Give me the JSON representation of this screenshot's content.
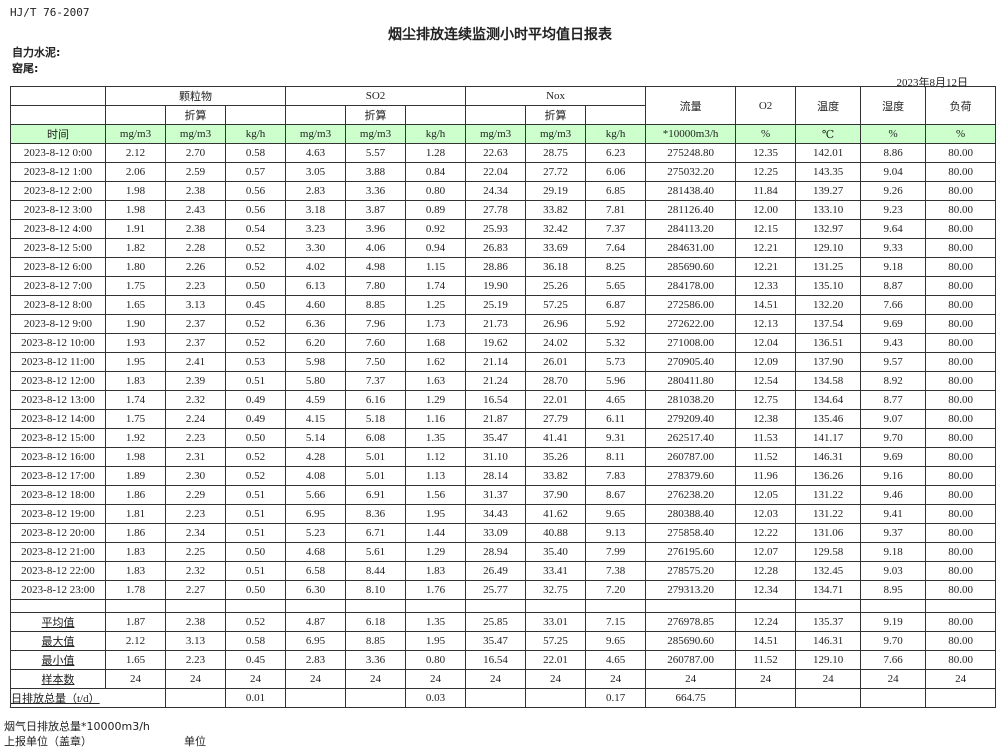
{
  "standard": "HJ/T  76-2007",
  "title": "烟尘排放连续监测小时平均值日报表",
  "plant_label": "自力水泥:",
  "kiln_label": "窑尾:",
  "report_date": "2023年8月12日",
  "header": {
    "groups": [
      "颗粒物",
      "SO2",
      "Nox"
    ],
    "flow": "流量",
    "o2": "O2",
    "temp": "温度",
    "humidity": "湿度",
    "load": "负荷",
    "converted": "折算",
    "time": "时间",
    "units": [
      "mg/m3",
      "mg/m3",
      "kg/h",
      "mg/m3",
      "mg/m3",
      "kg/h",
      "mg/m3",
      "mg/m3",
      "kg/h",
      "*10000m3/h",
      "%",
      "℃",
      "%",
      "%"
    ]
  },
  "rows": [
    [
      "2023-8-12 0:00",
      "2.12",
      "2.70",
      "0.58",
      "4.63",
      "5.57",
      "1.28",
      "22.63",
      "28.75",
      "6.23",
      "275248.80",
      "12.35",
      "142.01",
      "8.86",
      "80.00"
    ],
    [
      "2023-8-12 1:00",
      "2.06",
      "2.59",
      "0.57",
      "3.05",
      "3.88",
      "0.84",
      "22.04",
      "27.72",
      "6.06",
      "275032.20",
      "12.25",
      "143.35",
      "9.04",
      "80.00"
    ],
    [
      "2023-8-12 2:00",
      "1.98",
      "2.38",
      "0.56",
      "2.83",
      "3.36",
      "0.80",
      "24.34",
      "29.19",
      "6.85",
      "281438.40",
      "11.84",
      "139.27",
      "9.26",
      "80.00"
    ],
    [
      "2023-8-12 3:00",
      "1.98",
      "2.43",
      "0.56",
      "3.18",
      "3.87",
      "0.89",
      "27.78",
      "33.82",
      "7.81",
      "281126.40",
      "12.00",
      "133.10",
      "9.23",
      "80.00"
    ],
    [
      "2023-8-12 4:00",
      "1.91",
      "2.38",
      "0.54",
      "3.23",
      "3.96",
      "0.92",
      "25.93",
      "32.42",
      "7.37",
      "284113.20",
      "12.15",
      "132.97",
      "9.64",
      "80.00"
    ],
    [
      "2023-8-12 5:00",
      "1.82",
      "2.28",
      "0.52",
      "3.30",
      "4.06",
      "0.94",
      "26.83",
      "33.69",
      "7.64",
      "284631.00",
      "12.21",
      "129.10",
      "9.33",
      "80.00"
    ],
    [
      "2023-8-12 6:00",
      "1.80",
      "2.26",
      "0.52",
      "4.02",
      "4.98",
      "1.15",
      "28.86",
      "36.18",
      "8.25",
      "285690.60",
      "12.21",
      "131.25",
      "9.18",
      "80.00"
    ],
    [
      "2023-8-12 7:00",
      "1.75",
      "2.23",
      "0.50",
      "6.13",
      "7.80",
      "1.74",
      "19.90",
      "25.26",
      "5.65",
      "284178.00",
      "12.33",
      "135.10",
      "8.87",
      "80.00"
    ],
    [
      "2023-8-12 8:00",
      "1.65",
      "3.13",
      "0.45",
      "4.60",
      "8.85",
      "1.25",
      "25.19",
      "57.25",
      "6.87",
      "272586.00",
      "14.51",
      "132.20",
      "7.66",
      "80.00"
    ],
    [
      "2023-8-12 9:00",
      "1.90",
      "2.37",
      "0.52",
      "6.36",
      "7.96",
      "1.73",
      "21.73",
      "26.96",
      "5.92",
      "272622.00",
      "12.13",
      "137.54",
      "9.69",
      "80.00"
    ],
    [
      "2023-8-12 10:00",
      "1.93",
      "2.37",
      "0.52",
      "6.20",
      "7.60",
      "1.68",
      "19.62",
      "24.02",
      "5.32",
      "271008.00",
      "12.04",
      "136.51",
      "9.43",
      "80.00"
    ],
    [
      "2023-8-12 11:00",
      "1.95",
      "2.41",
      "0.53",
      "5.98",
      "7.50",
      "1.62",
      "21.14",
      "26.01",
      "5.73",
      "270905.40",
      "12.09",
      "137.90",
      "9.57",
      "80.00"
    ],
    [
      "2023-8-12 12:00",
      "1.83",
      "2.39",
      "0.51",
      "5.80",
      "7.37",
      "1.63",
      "21.24",
      "28.70",
      "5.96",
      "280411.80",
      "12.54",
      "134.58",
      "8.92",
      "80.00"
    ],
    [
      "2023-8-12 13:00",
      "1.74",
      "2.32",
      "0.49",
      "4.59",
      "6.16",
      "1.29",
      "16.54",
      "22.01",
      "4.65",
      "281038.20",
      "12.75",
      "134.64",
      "8.77",
      "80.00"
    ],
    [
      "2023-8-12 14:00",
      "1.75",
      "2.24",
      "0.49",
      "4.15",
      "5.18",
      "1.16",
      "21.87",
      "27.79",
      "6.11",
      "279209.40",
      "12.38",
      "135.46",
      "9.07",
      "80.00"
    ],
    [
      "2023-8-12 15:00",
      "1.92",
      "2.23",
      "0.50",
      "5.14",
      "6.08",
      "1.35",
      "35.47",
      "41.41",
      "9.31",
      "262517.40",
      "11.53",
      "141.17",
      "9.70",
      "80.00"
    ],
    [
      "2023-8-12 16:00",
      "1.98",
      "2.31",
      "0.52",
      "4.28",
      "5.01",
      "1.12",
      "31.10",
      "35.26",
      "8.11",
      "260787.00",
      "11.52",
      "146.31",
      "9.69",
      "80.00"
    ],
    [
      "2023-8-12 17:00",
      "1.89",
      "2.30",
      "0.52",
      "4.08",
      "5.01",
      "1.13",
      "28.14",
      "33.82",
      "7.83",
      "278379.60",
      "11.96",
      "136.26",
      "9.16",
      "80.00"
    ],
    [
      "2023-8-12 18:00",
      "1.86",
      "2.29",
      "0.51",
      "5.66",
      "6.91",
      "1.56",
      "31.37",
      "37.90",
      "8.67",
      "276238.20",
      "12.05",
      "131.22",
      "9.46",
      "80.00"
    ],
    [
      "2023-8-12 19:00",
      "1.81",
      "2.23",
      "0.51",
      "6.95",
      "8.36",
      "1.95",
      "34.43",
      "41.62",
      "9.65",
      "280388.40",
      "12.03",
      "131.22",
      "9.41",
      "80.00"
    ],
    [
      "2023-8-12 20:00",
      "1.86",
      "2.34",
      "0.51",
      "5.23",
      "6.71",
      "1.44",
      "33.09",
      "40.88",
      "9.13",
      "275858.40",
      "12.22",
      "131.06",
      "9.37",
      "80.00"
    ],
    [
      "2023-8-12 21:00",
      "1.83",
      "2.25",
      "0.50",
      "4.68",
      "5.61",
      "1.29",
      "28.94",
      "35.40",
      "7.99",
      "276195.60",
      "12.07",
      "129.58",
      "9.18",
      "80.00"
    ],
    [
      "2023-8-12 22:00",
      "1.83",
      "2.32",
      "0.51",
      "6.58",
      "8.44",
      "1.83",
      "26.49",
      "33.41",
      "7.38",
      "278575.20",
      "12.28",
      "132.45",
      "9.03",
      "80.00"
    ],
    [
      "2023-8-12 23:00",
      "1.78",
      "2.27",
      "0.50",
      "6.30",
      "8.10",
      "1.76",
      "25.77",
      "32.75",
      "7.20",
      "279313.20",
      "12.34",
      "134.71",
      "8.95",
      "80.00"
    ]
  ],
  "summary": [
    [
      "平均值",
      "1.87",
      "2.38",
      "0.52",
      "4.87",
      "6.18",
      "1.35",
      "25.85",
      "33.01",
      "7.15",
      "276978.85",
      "12.24",
      "135.37",
      "9.19",
      "80.00"
    ],
    [
      "最大值",
      "2.12",
      "3.13",
      "0.58",
      "6.95",
      "8.85",
      "1.95",
      "35.47",
      "57.25",
      "9.65",
      "285690.60",
      "14.51",
      "146.31",
      "9.70",
      "80.00"
    ],
    [
      "最小值",
      "1.65",
      "2.23",
      "0.45",
      "2.83",
      "3.36",
      "0.80",
      "16.54",
      "22.01",
      "4.65",
      "260787.00",
      "11.52",
      "129.10",
      "7.66",
      "80.00"
    ],
    [
      "样本数",
      "24",
      "24",
      "24",
      "24",
      "24",
      "24",
      "24",
      "24",
      "24",
      "24",
      "24",
      "24",
      "24",
      "24"
    ]
  ],
  "daily_total": {
    "label": "日排放总量（t/d）",
    "cells": [
      "",
      "0.01",
      "",
      "",
      "0.03",
      "",
      "",
      "0.17",
      "664.75",
      "",
      "",
      "",
      ""
    ]
  },
  "footer": {
    "flue_total": "烟气日排放总量*10000m3/h",
    "reporting_unit": "上报单位（盖章）",
    "unit": "单位"
  },
  "colors": {
    "header_green": "#ccffcc"
  }
}
